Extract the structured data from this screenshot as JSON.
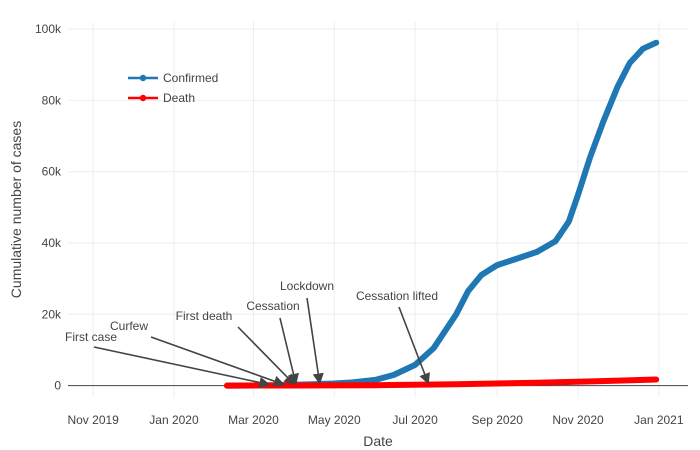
{
  "chart_data": {
    "type": "line",
    "xlabel": "Date",
    "ylabel": "Cumulative number of cases",
    "x_range": [
      "2019-10-13",
      "2021-01-23"
    ],
    "y_range": [
      -3200,
      102000
    ],
    "x_ticks": [
      {
        "date": "2019-11-01",
        "label": "Nov 2019"
      },
      {
        "date": "2020-01-01",
        "label": "Jan 2020"
      },
      {
        "date": "2020-03-01",
        "label": "Mar 2020"
      },
      {
        "date": "2020-05-01",
        "label": "May 2020"
      },
      {
        "date": "2020-07-01",
        "label": "Jul 2020"
      },
      {
        "date": "2020-09-01",
        "label": "Sep 2020"
      },
      {
        "date": "2020-11-01",
        "label": "Nov 2020"
      },
      {
        "date": "2021-01-01",
        "label": "Jan 2021"
      }
    ],
    "y_ticks": [
      {
        "value": 0,
        "label": "0"
      },
      {
        "value": 20000,
        "label": "20k"
      },
      {
        "value": 40000,
        "label": "40k"
      },
      {
        "value": 60000,
        "label": "60k"
      },
      {
        "value": 80000,
        "label": "80k"
      },
      {
        "value": 100000,
        "label": "100k"
      }
    ],
    "grid": true,
    "legend_position": "top-left",
    "series": [
      {
        "name": "Confirmed",
        "color": "#1f77b4",
        "points": [
          [
            "2020-02-10",
            0
          ],
          [
            "2020-03-01",
            20
          ],
          [
            "2020-03-15",
            100
          ],
          [
            "2020-04-01",
            250
          ],
          [
            "2020-04-15",
            400
          ],
          [
            "2020-05-01",
            600
          ],
          [
            "2020-05-15",
            900
          ],
          [
            "2020-06-01",
            1600
          ],
          [
            "2020-06-15",
            3000
          ],
          [
            "2020-07-01",
            5800
          ],
          [
            "2020-07-15",
            10500
          ],
          [
            "2020-08-01",
            20000
          ],
          [
            "2020-08-10",
            26500
          ],
          [
            "2020-08-20",
            31000
          ],
          [
            "2020-09-01",
            33800
          ],
          [
            "2020-09-15",
            35500
          ],
          [
            "2020-10-01",
            37500
          ],
          [
            "2020-10-15",
            40500
          ],
          [
            "2020-10-25",
            46000
          ],
          [
            "2020-11-01",
            53500
          ],
          [
            "2020-11-10",
            64000
          ],
          [
            "2020-11-20",
            74000
          ],
          [
            "2020-12-01",
            84000
          ],
          [
            "2020-12-10",
            90500
          ],
          [
            "2020-12-20",
            94500
          ],
          [
            "2020-12-30",
            96200
          ]
        ]
      },
      {
        "name": "Death",
        "color": "#ff0000",
        "points": [
          [
            "2020-02-10",
            0
          ],
          [
            "2020-04-01",
            20
          ],
          [
            "2020-06-01",
            100
          ],
          [
            "2020-08-01",
            400
          ],
          [
            "2020-10-01",
            800
          ],
          [
            "2020-11-15",
            1200
          ],
          [
            "2020-12-30",
            1700
          ]
        ]
      }
    ],
    "annotations": [
      {
        "text": "First case",
        "date": "2020-03-13",
        "value": 0
      },
      {
        "text": "Curfew",
        "date": "2020-03-24",
        "value": 0
      },
      {
        "text": "First death",
        "date": "2020-04-01",
        "value": 0
      },
      {
        "text": "Cessation",
        "date": "2020-04-02",
        "value": 200
      },
      {
        "text": "Lockdown",
        "date": "2020-04-20",
        "value": 300
      },
      {
        "text": "Cessation lifted",
        "date": "2020-07-11",
        "value": 300
      }
    ]
  }
}
